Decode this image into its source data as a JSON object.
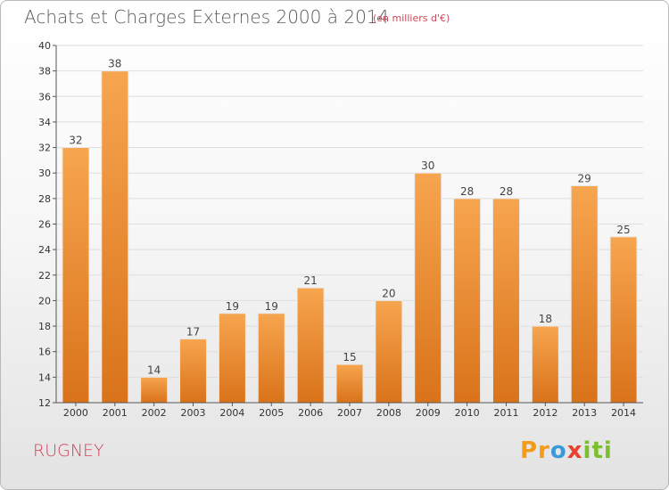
{
  "header": {
    "title": "Achats et Charges Externes 2000 à 2014",
    "subtitle": "(en milliers d'€)"
  },
  "footer": {
    "place": "RUGNEY",
    "logo": "Proxiti"
  },
  "colors": {
    "bar_top": "#f7a54f",
    "bar_bottom": "#d9731a",
    "axis": "#555555",
    "grid": "#dddddd",
    "title": "#5a5a5a",
    "place": "#d0405a"
  },
  "chart_data": {
    "type": "bar",
    "title": "Achats et Charges Externes 2000 à 2014",
    "subtitle": "(en milliers d'€)",
    "xlabel": "",
    "ylabel": "",
    "ylim": [
      12,
      40
    ],
    "yticks": [
      12,
      14,
      16,
      18,
      20,
      22,
      24,
      26,
      28,
      30,
      32,
      34,
      36,
      38,
      40
    ],
    "grid": true,
    "categories": [
      "2000",
      "2001",
      "2002",
      "2003",
      "2004",
      "2005",
      "2006",
      "2007",
      "2008",
      "2009",
      "2010",
      "2011",
      "2012",
      "2013",
      "2014"
    ],
    "values": [
      32,
      38,
      14,
      17,
      19,
      19,
      21,
      15,
      20,
      30,
      28,
      28,
      18,
      29,
      25
    ]
  }
}
